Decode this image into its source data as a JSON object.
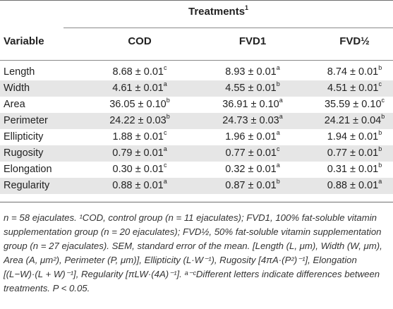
{
  "header": {
    "treatments_label": "Treatments",
    "treatments_sup": "1",
    "variable_label": "Variable",
    "columns": [
      "COD",
      "FVD1",
      "FVD½"
    ]
  },
  "rows": [
    {
      "variable": "Length",
      "cod": "8.68 ± 0.01",
      "cod_sup": "c",
      "fvd1": "8.93 ± 0.01",
      "fvd1_sup": "a",
      "fvdhalf": "8.74 ± 0.01",
      "fvdhalf_sup": "b"
    },
    {
      "variable": "Width",
      "cod": "4.61 ± 0.01",
      "cod_sup": "a",
      "fvd1": "4.55 ± 0.01",
      "fvd1_sup": "b",
      "fvdhalf": "4.51 ± 0.01",
      "fvdhalf_sup": "c"
    },
    {
      "variable": "Area",
      "cod": "36.05 ± 0.10",
      "cod_sup": "b",
      "fvd1": "36.91 ± 0.10",
      "fvd1_sup": "a",
      "fvdhalf": "35.59 ± 0.10",
      "fvdhalf_sup": "c"
    },
    {
      "variable": "Perimeter",
      "cod": "24.22 ± 0.03",
      "cod_sup": "b",
      "fvd1": "24.73 ± 0.03",
      "fvd1_sup": "a",
      "fvdhalf": "24.21 ± 0.04",
      "fvdhalf_sup": "b"
    },
    {
      "variable": "Ellipticity",
      "cod": "1.88 ± 0.01",
      "cod_sup": "c",
      "fvd1": "1.96 ± 0.01",
      "fvd1_sup": "a",
      "fvdhalf": "1.94 ± 0.01",
      "fvdhalf_sup": "b"
    },
    {
      "variable": "Rugosity",
      "cod": "0.79 ± 0.01",
      "cod_sup": "a",
      "fvd1": "0.77 ± 0.01",
      "fvd1_sup": "c",
      "fvdhalf": "0.77 ± 0.01",
      "fvdhalf_sup": "b"
    },
    {
      "variable": "Elongation",
      "cod": "0.30 ± 0.01",
      "cod_sup": "c",
      "fvd1": "0.32 ± 0.01",
      "fvd1_sup": "a",
      "fvdhalf": "0.31 ± 0.01",
      "fvdhalf_sup": "b"
    },
    {
      "variable": "Regularity",
      "cod": "0.88 ± 0.01",
      "cod_sup": "a",
      "fvd1": "0.87 ± 0.01",
      "fvd1_sup": "b",
      "fvdhalf": "0.88 ± 0.01",
      "fvdhalf_sup": "a"
    }
  ],
  "footnote": "n = 58 ejaculates. ¹COD, control group (n = 11 ejaculates); FVD1, 100% fat-soluble vitamin supplementation group (n = 20 ejaculates); FVD½, 50% fat-soluble vitamin supplementation group (n = 27 ejaculates). SEM, standard error of the mean. [Length (L, μm), Width (W, μm), Area (A, μm²), Perimeter (P, μm)], Ellipticity (L·W⁻¹), Rugosity [4πA·(P²)⁻¹], Elongation [(L−W)·(L + W)⁻¹], Regularity [πLW·(4A)⁻¹]. ᵃ⁻ᶜDifferent letters indicate differences between treatments. P < 0.05."
}
